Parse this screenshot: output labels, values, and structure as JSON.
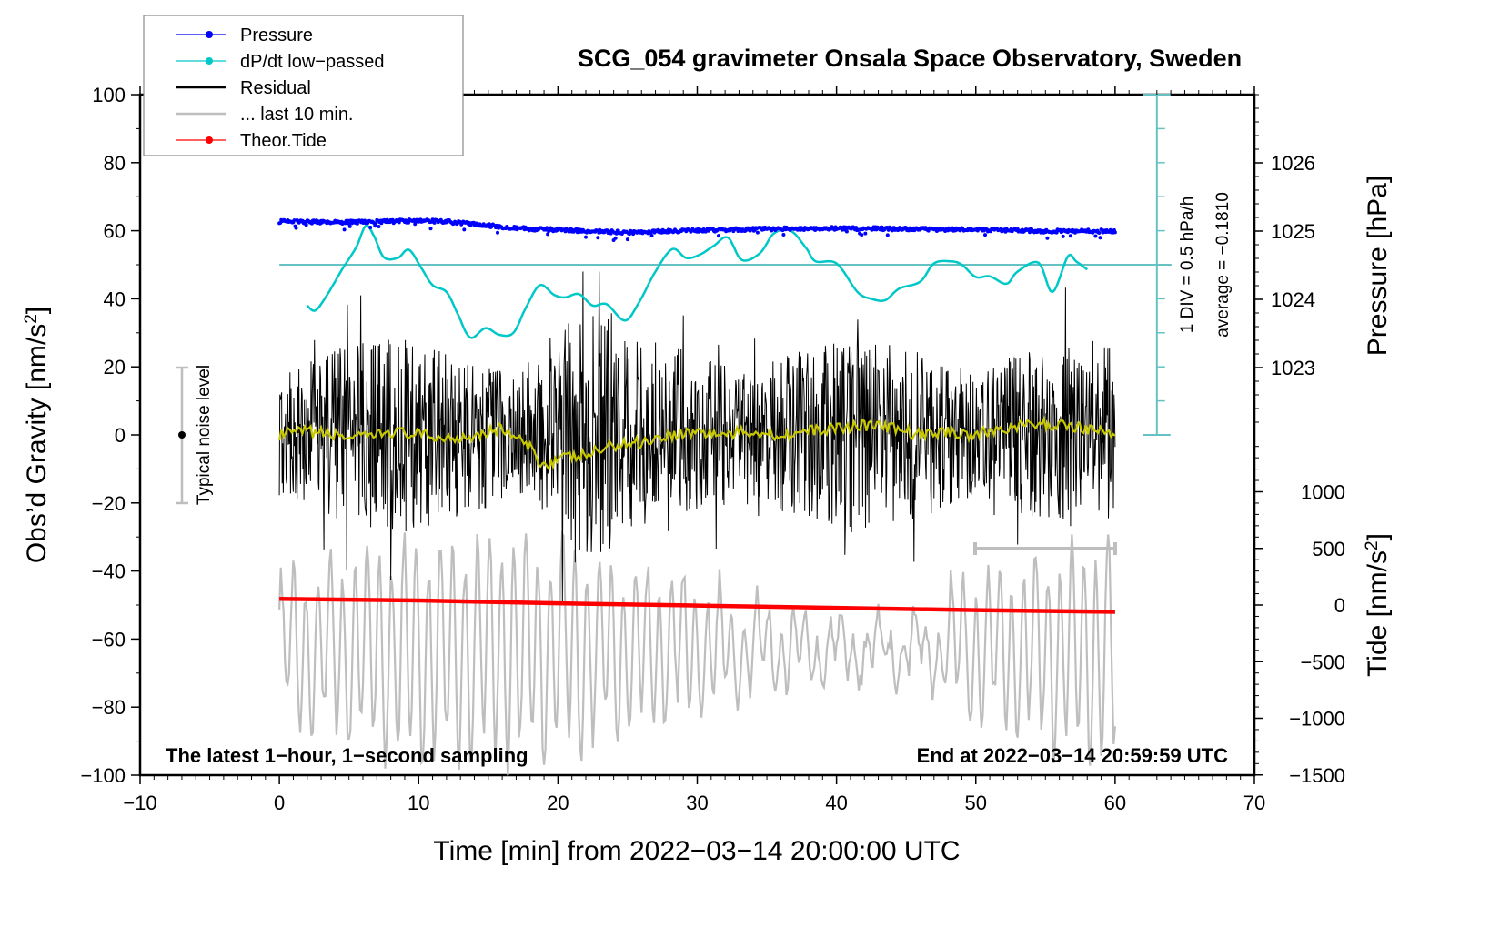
{
  "chart_data": {
    "type": "line",
    "title": "SCG_054 gravimeter Onsala Space Observatory, Sweden",
    "xlabel": "Time [min] from 2022−03−14 20:00:00 UTC",
    "ylabel_left": "Obs’d Gravity [nm/s²]",
    "ylabel_left_base": "Obs’d Gravity [nm/s",
    "ylabel_left_sup": "2",
    "ylabel_left_end": "]",
    "ylabel_right_pressure": "Pressure [hPa]",
    "ylabel_right_tide_base": "Tide [nm/s",
    "ylabel_right_tide_sup": "2",
    "ylabel_right_tide_end": "]",
    "xlim": [
      -10,
      70
    ],
    "ylim_left": [
      -100,
      100
    ],
    "xticks": [
      -10,
      0,
      10,
      20,
      30,
      40,
      50,
      60,
      70
    ],
    "xtick_labels": [
      "−10",
      "0",
      "10",
      "20",
      "30",
      "40",
      "50",
      "60",
      "70"
    ],
    "yticks_left": [
      100,
      80,
      60,
      40,
      20,
      0,
      -20,
      -40,
      -60,
      -80,
      -100
    ],
    "ytick_labels_left": [
      "100",
      "80",
      "60",
      "40",
      "20",
      "0",
      "−20",
      "−40",
      "−60",
      "−80",
      "−100"
    ],
    "pressure_axis": {
      "ticks": [
        1026,
        1025,
        1024,
        1023
      ],
      "tick_labels": [
        "1026",
        "1025",
        "1024",
        "1023"
      ]
    },
    "tide_axis": {
      "range": [
        -1500,
        1000
      ],
      "ticks": [
        1000,
        500,
        0,
        -500,
        -1000,
        -1500
      ],
      "tick_labels": [
        "1000",
        "500",
        "0",
        "−500",
        "−1000",
        "−1500"
      ]
    },
    "dpdt_scale": {
      "label": "1 DIV = 0.5 hPa/h",
      "average_label": "average = −0.1810",
      "division_hpa_per_h": 0.5,
      "average": -0.181
    },
    "annotations": {
      "bottom_left": "The latest 1−hour, 1−second sampling",
      "bottom_right": "End at 2022−03−14 20:59:59 UTC",
      "noise_label": "Typical noise level",
      "noise_bar_range": [
        -20,
        20
      ],
      "last10min_bar_x": [
        50,
        60
      ]
    },
    "legend": {
      "position": "top-left",
      "entries": [
        {
          "label": "Pressure",
          "color": "#0000ff",
          "marker": true
        },
        {
          "label": "dP/dt low−passed",
          "color": "#00c8c8",
          "marker": true
        },
        {
          "label": "Residual",
          "color": "#000000",
          "marker": false
        },
        {
          "label": "... last 10 min.",
          "color": "#bebebe",
          "marker": false
        },
        {
          "label": "Theor.Tide",
          "color": "#ff0000",
          "marker": true
        }
      ]
    },
    "series": [
      {
        "name": "Pressure",
        "unit": "hPa",
        "color": "#0000ff",
        "x": [
          0,
          5,
          10,
          12,
          15,
          18,
          20,
          25,
          30,
          35,
          40,
          45,
          50,
          55,
          60
        ],
        "values": [
          1025.14,
          1025.13,
          1025.15,
          1025.14,
          1025.08,
          1025.03,
          1025.02,
          1024.98,
          1025.01,
          1025.03,
          1025.04,
          1025.03,
          1025.02,
          1025.0,
          1025.0
        ]
      },
      {
        "name": "dP/dt low-passed",
        "unit": "hPa/h (relative to baseline, 1 DIV = 0.5)",
        "color": "#00c8c8",
        "x": [
          2,
          2.6,
          3.5,
          4.5,
          5.5,
          6.2,
          6.8,
          7.5,
          8.5,
          9.3,
          10.2,
          11,
          12,
          12.8,
          13.7,
          14.8,
          15.8,
          16.8,
          17.7,
          18.7,
          19.7,
          20.5,
          21.5,
          22.5,
          23.5,
          24.8,
          25.8,
          27,
          28.2,
          29.2,
          30.2,
          31.2,
          32.2,
          33.2,
          34.5,
          35.5,
          36.7,
          37.8,
          38.5,
          40,
          41.5,
          42.5,
          43.5,
          44.5,
          46,
          47,
          48.2,
          49,
          50,
          51,
          52.2,
          53,
          54.5,
          55.5,
          56.6,
          57.2,
          58
        ],
        "values": [
          -0.6,
          -0.67,
          -0.42,
          -0.07,
          0.25,
          0.57,
          0.42,
          0.11,
          0.1,
          0.22,
          -0.05,
          -0.3,
          -0.4,
          -0.72,
          -1.07,
          -0.93,
          -1.03,
          -1.0,
          -0.63,
          -0.3,
          -0.44,
          -0.48,
          -0.43,
          -0.6,
          -0.58,
          -0.82,
          -0.56,
          -0.1,
          0.23,
          0.1,
          0.15,
          0.28,
          0.4,
          0.07,
          0.17,
          0.46,
          0.5,
          0.25,
          0.05,
          0.02,
          -0.4,
          -0.5,
          -0.52,
          -0.35,
          -0.25,
          0.02,
          0.05,
          0.0,
          -0.18,
          -0.17,
          -0.28,
          -0.1,
          0.03,
          -0.4,
          0.12,
          0.05,
          -0.07
        ]
      },
      {
        "name": "Residual",
        "unit": "nm/s²",
        "color": "#000000",
        "x_range": [
          0,
          60
        ],
        "envelope": "noisy ±30–45 nm/s² about 0",
        "smoothed_color": "#c8c800",
        "smoothed_x": [
          0,
          2,
          4,
          6,
          8,
          10,
          12,
          14,
          16,
          17,
          18,
          19,
          20,
          22,
          24,
          26,
          28,
          30,
          32,
          34,
          36,
          38,
          40,
          42,
          44,
          46,
          48,
          50,
          52,
          54,
          56,
          58,
          60
        ],
        "smoothed_values": [
          0,
          1,
          0,
          -1,
          1,
          0,
          -1,
          0,
          2,
          -1,
          -4,
          -9,
          -7,
          -6,
          -3,
          -2,
          0,
          1,
          0,
          1,
          0,
          1,
          2,
          3,
          2,
          0,
          1,
          0,
          2,
          3,
          3,
          2,
          0
        ]
      },
      {
        "name": "... last 10 min.",
        "unit": "nm/s² (same axis)",
        "color": "#bebebe",
        "x_range": [
          0,
          60
        ],
        "envelope": "oscillatory, approx −95 to −35 nm/s²"
      },
      {
        "name": "Theor.Tide",
        "unit": "nm/s²",
        "color": "#ff0000",
        "x": [
          0,
          10,
          20,
          30,
          40,
          50,
          60
        ],
        "values": [
          55,
          40,
          15,
          -5,
          -25,
          -45,
          -60
        ]
      }
    ]
  }
}
